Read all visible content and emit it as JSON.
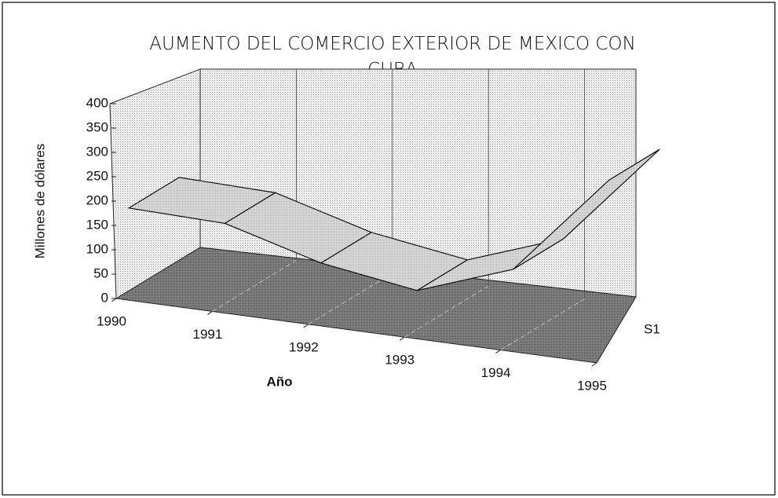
{
  "chart_data": {
    "type": "line3d",
    "title": "AUMENTO DEL COMERCIO EXTERIOR DE MEXICO CON CUBA",
    "x_label": "Año",
    "y_label": "Millones de dólares",
    "categories": [
      "1990",
      "1991",
      "1992",
      "1993",
      "1994",
      "1995"
    ],
    "series": [
      {
        "name": "S1",
        "color": "#d8d8d8",
        "values": [
          170,
          165,
          110,
          80,
          150,
          360
        ]
      }
    ],
    "ylim": [
      0,
      400
    ],
    "yticks": [
      0,
      50,
      100,
      150,
      200,
      250,
      300,
      350,
      400
    ]
  }
}
